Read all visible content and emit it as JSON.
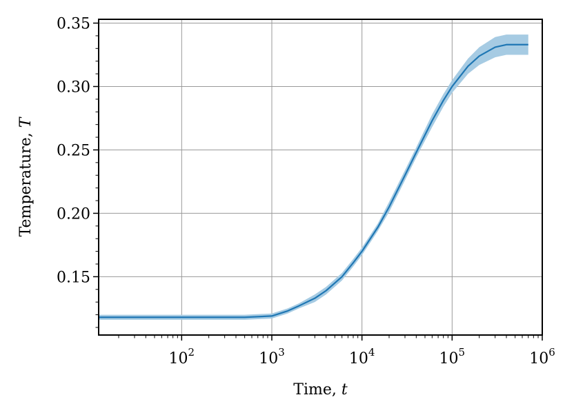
{
  "chart_data": {
    "type": "line",
    "xlabel": "Time, ",
    "xlabel_var": "t",
    "ylabel": "Temperature, ",
    "ylabel_var": "T",
    "x_scale": "log",
    "xlim": [
      12,
      1000000
    ],
    "ylim": [
      0.104,
      0.353
    ],
    "grid": true,
    "x_ticks": [
      {
        "value": 100,
        "base": "10",
        "exp": "2"
      },
      {
        "value": 1000,
        "base": "10",
        "exp": "3"
      },
      {
        "value": 10000,
        "base": "10",
        "exp": "4"
      },
      {
        "value": 100000,
        "base": "10",
        "exp": "5"
      },
      {
        "value": 1000000,
        "base": "10",
        "exp": "6"
      }
    ],
    "y_ticks": [
      {
        "value": 0.15,
        "label": "0.15"
      },
      {
        "value": 0.2,
        "label": "0.20"
      },
      {
        "value": 0.25,
        "label": "0.25"
      },
      {
        "value": 0.3,
        "label": "0.30"
      },
      {
        "value": 0.35,
        "label": "0.35"
      }
    ],
    "colors": {
      "line": "#1f77b4",
      "band": "#a6cbe3",
      "grid": "#999999"
    },
    "series": [
      {
        "x": [
          12,
          50,
          100,
          200,
          500,
          1000,
          1500,
          2000,
          3000,
          4000,
          6000,
          8000,
          10000,
          15000,
          20000,
          30000,
          40000,
          60000,
          80000,
          100000,
          150000,
          200000,
          300000,
          400000,
          500000,
          700000
        ],
        "y": [
          0.118,
          0.118,
          0.118,
          0.118,
          0.118,
          0.119,
          0.123,
          0.127,
          0.133,
          0.139,
          0.15,
          0.161,
          0.17,
          0.189,
          0.205,
          0.23,
          0.248,
          0.273,
          0.289,
          0.3,
          0.316,
          0.324,
          0.331,
          0.333,
          0.333,
          0.333
        ],
        "band": [
          0.002,
          0.002,
          0.002,
          0.002,
          0.002,
          0.002,
          0.002,
          0.002,
          0.003,
          0.003,
          0.003,
          0.003,
          0.003,
          0.003,
          0.004,
          0.004,
          0.004,
          0.005,
          0.005,
          0.005,
          0.006,
          0.007,
          0.008,
          0.008,
          0.008,
          0.008
        ]
      }
    ]
  }
}
